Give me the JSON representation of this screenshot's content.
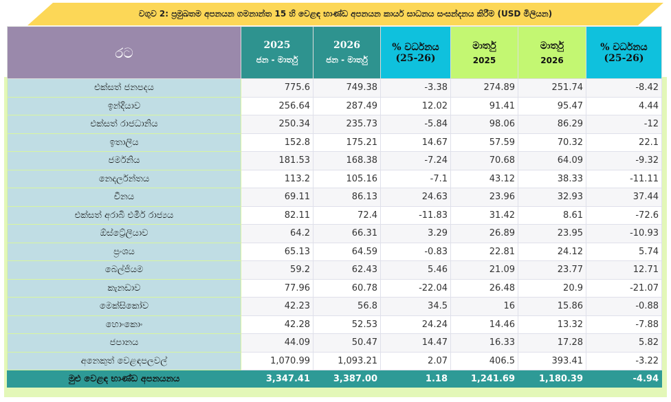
{
  "title": "වගුව 2: ප්‍රමුඛතම අපනයන ගමනාන්ත 15 හි වෙළඳ භාණ්ඩ අපනයන කාර්ය සාධනය සංසන්දනය කිරීම (USD මිලියන)",
  "headers": {
    "country": "රට",
    "c1a": "2025",
    "c1b": "ජන - මාර්තු",
    "c2a": "2026",
    "c2b": "ජන - මාර්තු",
    "c3a": "% වර්ධනය",
    "c3b": "(25-26)",
    "c4a": "මාර්තු",
    "c4b": "2025",
    "c5a": "මාර්තු",
    "c5b": "2026",
    "c6a": "% වර්ධනය",
    "c6b": "(25-26)"
  },
  "colors": {
    "country_header": "#9a89ab",
    "teal": "#2e938f",
    "cyan": "#0fc1dd",
    "green": "#c3f772",
    "banner": "#fcd757",
    "country_cell": "#c0dde4"
  },
  "rows": [
    [
      "එක්සත් ජනපදය",
      "775.6",
      "749.38",
      "-3.38",
      "274.89",
      "251.74",
      "-8.42"
    ],
    [
      "ඉන්දියාව",
      "256.64",
      "287.49",
      "12.02",
      "91.41",
      "95.47",
      "4.44"
    ],
    [
      "එක්සත් රාජධානිය",
      "250.34",
      "235.73",
      "-5.84",
      "98.06",
      "86.29",
      "-12"
    ],
    [
      "ඉතාලිය",
      "152.8",
      "175.21",
      "14.67",
      "57.59",
      "70.32",
      "22.1"
    ],
    [
      "ජර්මනිය",
      "181.53",
      "168.38",
      "-7.24",
      "70.68",
      "64.09",
      "-9.32"
    ],
    [
      "නෙදර්ලන්තය",
      "113.2",
      "105.16",
      "-7.1",
      "43.12",
      "38.33",
      "-11.11"
    ],
    [
      "චීනය",
      "69.11",
      "86.13",
      "24.63",
      "23.96",
      "32.93",
      "37.44"
    ],
    [
      "එක්සත් අරාබි එමීර් රාජ්‍යය",
      "82.11",
      "72.4",
      "-11.83",
      "31.42",
      "8.61",
      "-72.6"
    ],
    [
      "ඕස්ට්‍රේලියාව",
      "64.2",
      "66.31",
      "3.29",
      "26.89",
      "23.95",
      "-10.93"
    ],
    [
      "ප්‍රංශය",
      "65.13",
      "64.59",
      "-0.83",
      "22.81",
      "24.12",
      "5.74"
    ],
    [
      "බෙල්ජියම",
      "59.2",
      "62.43",
      "5.46",
      "21.09",
      "23.77",
      "12.71"
    ],
    [
      "කැනඩාව",
      "77.96",
      "60.78",
      "-22.04",
      "26.48",
      "20.9",
      "-21.07"
    ],
    [
      "මෙක්සිකෝව",
      "42.23",
      "56.8",
      "34.5",
      "16",
      "15.86",
      "-0.88"
    ],
    [
      "හොංකොං",
      "42.28",
      "52.53",
      "24.24",
      "14.46",
      "13.32",
      "-7.88"
    ],
    [
      "ජපානය",
      "44.09",
      "50.47",
      "14.47",
      "16.33",
      "17.28",
      "5.82"
    ],
    [
      "අනෙකුත් වෙළඳපලවල්",
      "1,070.99",
      "1,093.21",
      "2.07",
      "406.5",
      "393.41",
      "-3.22"
    ]
  ],
  "total": [
    "මුළු වෙළඳ භාණ්ඩ අපනයනය",
    "3,347.41",
    "3,387.00",
    "1.18",
    "1,241.69",
    "1,180.39",
    "-4.94"
  ]
}
